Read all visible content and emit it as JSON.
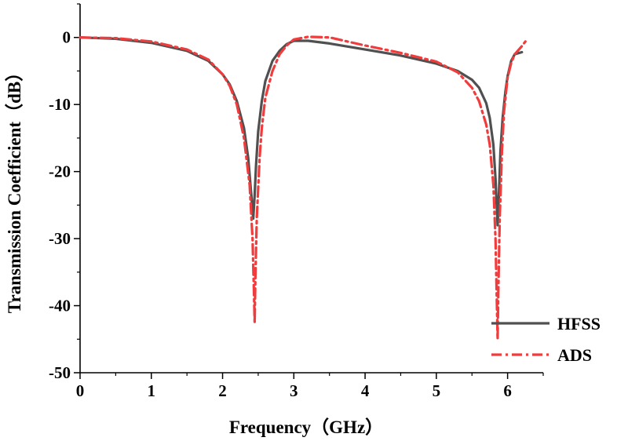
{
  "chart_data": {
    "type": "line",
    "title": "",
    "xlabel": "Frequency（GHz）",
    "ylabel": "Transmission Coefficient（dB）",
    "xlim": [
      0,
      6.5
    ],
    "ylim": [
      -50,
      5
    ],
    "xticks": [
      "0",
      "1",
      "2",
      "3",
      "4",
      "5",
      "6"
    ],
    "yticks": [
      "0",
      "-10",
      "-20",
      "-30",
      "-40",
      "-50"
    ],
    "grid": false,
    "legend_position": "bottom-right",
    "series": [
      {
        "name": "HFSS",
        "color": "#505050",
        "style": "solid",
        "x": [
          0,
          0.5,
          1.0,
          1.5,
          1.8,
          2.0,
          2.1,
          2.2,
          2.3,
          2.36,
          2.4,
          2.43,
          2.45,
          2.47,
          2.5,
          2.55,
          2.6,
          2.7,
          2.8,
          2.9,
          3.0,
          3.2,
          3.5,
          4.0,
          4.5,
          5.0,
          5.3,
          5.5,
          5.6,
          5.7,
          5.75,
          5.8,
          5.83,
          5.86,
          5.88,
          5.9,
          5.93,
          5.97,
          6.0,
          6.05,
          6.1,
          6.2
        ],
        "values": [
          0,
          -0.2,
          -0.8,
          -2.0,
          -3.5,
          -5.5,
          -7.0,
          -9.5,
          -13.5,
          -18.0,
          -23.0,
          -27.0,
          -23.5,
          -19.0,
          -14.0,
          -9.5,
          -6.5,
          -3.5,
          -2.0,
          -1.0,
          -0.5,
          -0.5,
          -0.9,
          -1.8,
          -2.7,
          -3.9,
          -5.0,
          -6.3,
          -7.5,
          -9.8,
          -12.0,
          -16.0,
          -21.0,
          -28.0,
          -23.0,
          -17.0,
          -12.0,
          -8.0,
          -5.8,
          -3.5,
          -2.5,
          -2.2
        ]
      },
      {
        "name": "ADS",
        "color": "#f03c3c",
        "style": "dash-dot",
        "x": [
          0,
          0.5,
          1.0,
          1.5,
          1.8,
          2.0,
          2.1,
          2.2,
          2.3,
          2.38,
          2.42,
          2.44,
          2.45,
          2.46,
          2.48,
          2.52,
          2.55,
          2.6,
          2.7,
          2.8,
          2.9,
          3.0,
          3.2,
          3.5,
          4.0,
          4.5,
          5.0,
          5.3,
          5.5,
          5.6,
          5.7,
          5.75,
          5.8,
          5.83,
          5.85,
          5.86,
          5.87,
          5.89,
          5.92,
          5.95,
          6.0,
          6.05,
          6.1,
          6.2,
          6.25
        ],
        "values": [
          0,
          -0.1,
          -0.6,
          -1.8,
          -3.3,
          -5.5,
          -7.2,
          -10.0,
          -15.0,
          -22.0,
          -30.0,
          -38.0,
          -42.5,
          -36.0,
          -27.0,
          -18.0,
          -13.5,
          -9.0,
          -5.0,
          -2.5,
          -1.2,
          -0.3,
          0.1,
          0.0,
          -1.2,
          -2.3,
          -3.6,
          -5.2,
          -7.5,
          -9.5,
          -13.0,
          -16.0,
          -22.0,
          -30.0,
          -40.0,
          -45.0,
          -38.0,
          -27.0,
          -17.0,
          -11.0,
          -6.0,
          -3.8,
          -2.5,
          -1.3,
          -0.6
        ]
      }
    ]
  }
}
